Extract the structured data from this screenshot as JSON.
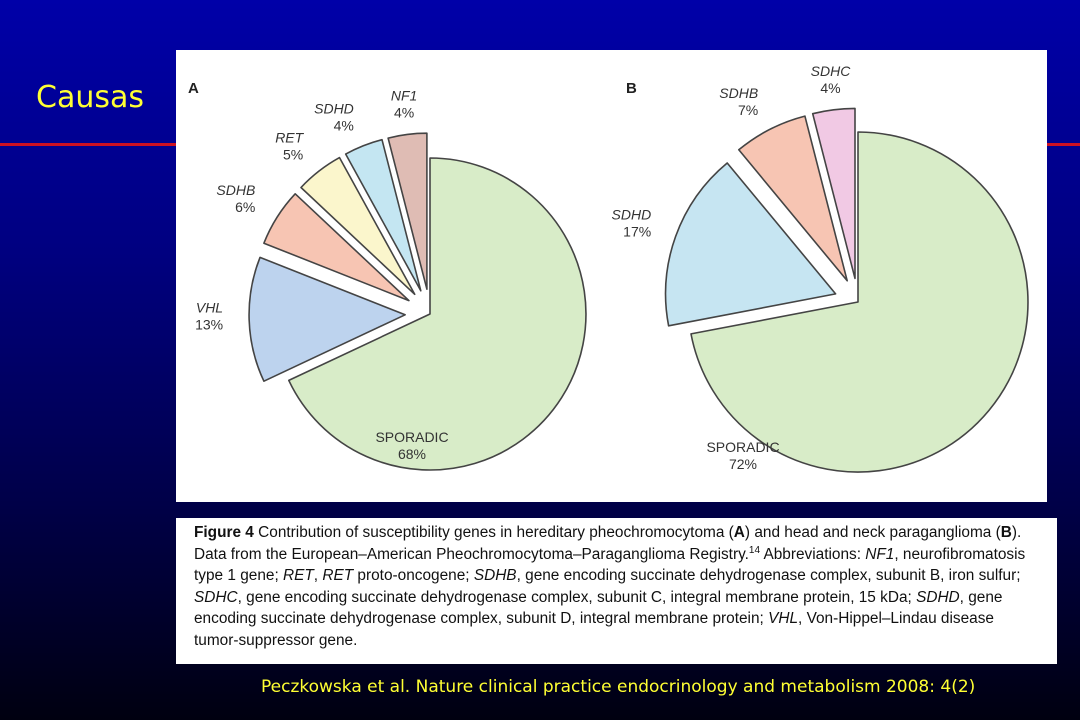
{
  "slide": {
    "title": "Causas",
    "citation": "Peczkowska et al. Nature clinical practice endocrinology and metabolism 2008: 4(2)"
  },
  "colors": {
    "background": "#000080",
    "title_text": "#ffff33",
    "rule": "#cc1122"
  },
  "chart_data": [
    {
      "type": "pie",
      "panel_label": "A",
      "slices": [
        {
          "label": "SPORADIC",
          "value": 68,
          "text": "68%",
          "italic": false,
          "color": "#d8ecc8"
        },
        {
          "label": "VHL",
          "value": 13,
          "text": "13%",
          "italic": true,
          "color": "#bdd3ee"
        },
        {
          "label": "SDHB",
          "value": 6,
          "text": "6%",
          "italic": true,
          "color": "#f7c5b3"
        },
        {
          "label": "RET",
          "value": 5,
          "text": "5%",
          "italic": true,
          "color": "#fbf6cc"
        },
        {
          "label": "SDHD",
          "value": 4,
          "text": "4%",
          "italic": true,
          "color": "#c4e6f2"
        },
        {
          "label": "NF1",
          "value": 4,
          "text": "4%",
          "italic": true,
          "color": "#dfbcb4"
        }
      ]
    },
    {
      "type": "pie",
      "panel_label": "B",
      "slices": [
        {
          "label": "SPORADIC",
          "value": 72,
          "text": "72%",
          "italic": false,
          "color": "#d8ecc8"
        },
        {
          "label": "SDHD",
          "value": 17,
          "text": "17%",
          "italic": true,
          "color": "#c6e5f2"
        },
        {
          "label": "SDHB",
          "value": 7,
          "text": "7%",
          "italic": true,
          "color": "#f7c5b3"
        },
        {
          "label": "SDHC",
          "value": 4,
          "text": "4%",
          "italic": true,
          "color": "#f1c9e4"
        }
      ]
    }
  ],
  "caption": {
    "figure_label": "Figure 4",
    "s1": " Contribution of susceptibility genes in hereditary pheochromocytoma (",
    "a": "A",
    "s2": ") and head and neck paraganglioma (",
    "b": "B",
    "s3": "). Data from the European–American Pheochromocytoma–Paraganglioma Registry.",
    "ref": "14",
    "s4": " Abbreviations: ",
    "nf1": "NF1",
    "s5": ", neurofibromatosis type 1 gene; ",
    "ret1": "RET",
    "s6": ", ",
    "ret2": "RET",
    "s7": " proto-oncogene; ",
    "sdhb": "SDHB",
    "s8": ", gene encoding succinate dehydrogenase complex, subunit B, iron sulfur; ",
    "sdhc": "SDHC",
    "s9": ", gene encoding succinate dehydrogenase complex, subunit C, integral membrane protein, 15 kDa; ",
    "sdhd": "SDHD",
    "s10": ", gene encoding succinate dehydrogenase complex, subunit D, integral membrane protein; ",
    "vhl": "VHL",
    "s11": ", Von-Hippel–Lindau disease tumor-suppressor gene."
  }
}
